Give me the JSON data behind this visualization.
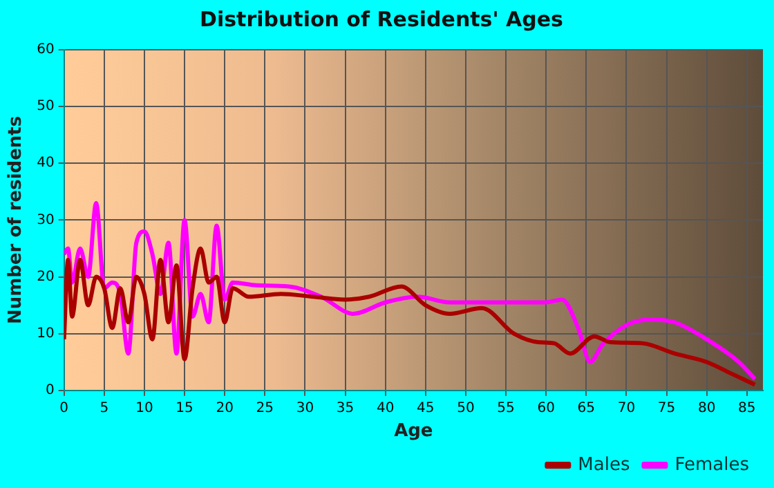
{
  "chart_data": {
    "type": "line",
    "title": "Distribution of Residents' Ages",
    "xlabel": "Age",
    "ylabel": "Number of residents",
    "xlim": [
      0,
      87
    ],
    "xticks": [
      0,
      5,
      10,
      15,
      20,
      25,
      30,
      35,
      40,
      45,
      50,
      55,
      60,
      65,
      70,
      75,
      80,
      85
    ],
    "ylim": [
      0,
      60
    ],
    "yticks": [
      0,
      10,
      20,
      30,
      40,
      50,
      60
    ],
    "grid": true,
    "legend": "bottom",
    "marker": "none",
    "line_style": "solid",
    "series": [
      {
        "name": "Males",
        "color": "#aa0000",
        "x": [
          0,
          0.5,
          1,
          2,
          3,
          4,
          5,
          6,
          7,
          8,
          9,
          10,
          11,
          12,
          13,
          14,
          15,
          16,
          17,
          18,
          19,
          20,
          21,
          23,
          27,
          31,
          35,
          38,
          42,
          45,
          48,
          52,
          56,
          59,
          61,
          63,
          66,
          68,
          72,
          76,
          80,
          83,
          86
        ],
        "values": [
          9,
          23,
          13,
          23,
          15,
          20,
          18,
          11,
          18,
          12,
          20,
          17,
          9,
          23,
          12,
          22,
          5.5,
          18,
          25,
          19,
          20,
          12,
          18,
          16.5,
          17,
          16.5,
          16,
          16.5,
          18.3,
          15,
          13.5,
          14.5,
          10,
          8.5,
          8.3,
          6.5,
          9.5,
          8.5,
          8.3,
          6.5,
          5,
          3,
          1
        ]
      },
      {
        "name": "Females",
        "color": "#ff00ff",
        "x": [
          0,
          0.5,
          1,
          2,
          3,
          4,
          5,
          6,
          7,
          8,
          9,
          10,
          11,
          12,
          13,
          14,
          15,
          16,
          17,
          18,
          19,
          20,
          21,
          24,
          28,
          32,
          36,
          40,
          44,
          48,
          55,
          60,
          62,
          64,
          65.5,
          67,
          70,
          73,
          76,
          80,
          84,
          86
        ],
        "values": [
          24,
          25,
          19,
          25,
          20,
          33,
          18,
          19,
          17,
          6.5,
          26,
          28,
          24,
          17,
          26,
          6.5,
          30,
          13,
          17,
          12,
          29,
          16,
          19,
          18.5,
          18.3,
          16.5,
          13.5,
          15.5,
          16.5,
          15.5,
          15.5,
          15.5,
          16,
          11,
          5,
          8,
          11.5,
          12.5,
          12,
          9,
          5,
          2
        ]
      }
    ]
  }
}
